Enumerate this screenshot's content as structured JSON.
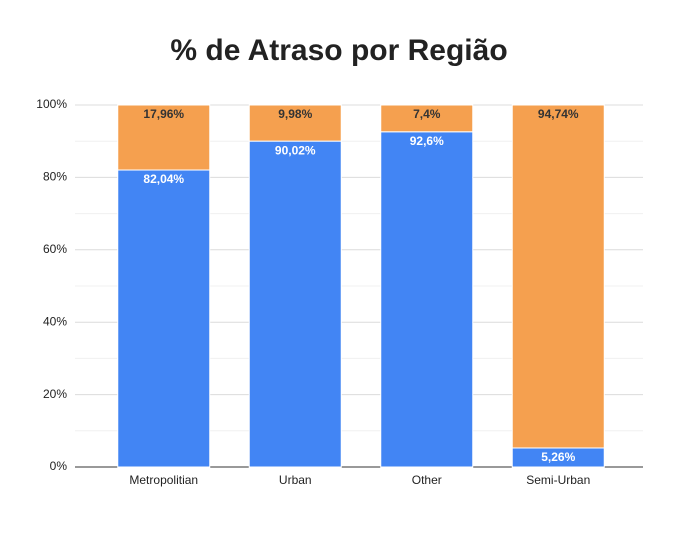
{
  "chart_data": {
    "type": "stacked_bar",
    "title": "% de Atraso por Região",
    "categories": [
      "Metropolitian",
      "Urban",
      "Other",
      "Semi-Urban"
    ],
    "series": [
      {
        "color": "#4285f4",
        "label_color": "#ffffff",
        "values": [
          82.04,
          90.02,
          92.6,
          5.26
        ],
        "value_labels": [
          "82,04%",
          "90,02%",
          "92,6%",
          "5,26%"
        ]
      },
      {
        "color": "#f5a04f",
        "label_color": "#333333",
        "values": [
          17.96,
          9.98,
          7.4,
          94.74
        ],
        "value_labels": [
          "17,96%",
          "9,98%",
          "7,4%",
          "94,74%"
        ]
      }
    ],
    "ylim": [
      0,
      100
    ],
    "yticks": [
      {
        "value": 0,
        "label": "0%"
      },
      {
        "value": 20,
        "label": "20%"
      },
      {
        "value": 40,
        "label": "40%"
      },
      {
        "value": 60,
        "label": "60%"
      },
      {
        "value": 80,
        "label": "80%"
      },
      {
        "value": 100,
        "label": "100%"
      }
    ],
    "minor_yticks": [
      10,
      30,
      50,
      70,
      90
    ],
    "grid": true
  }
}
